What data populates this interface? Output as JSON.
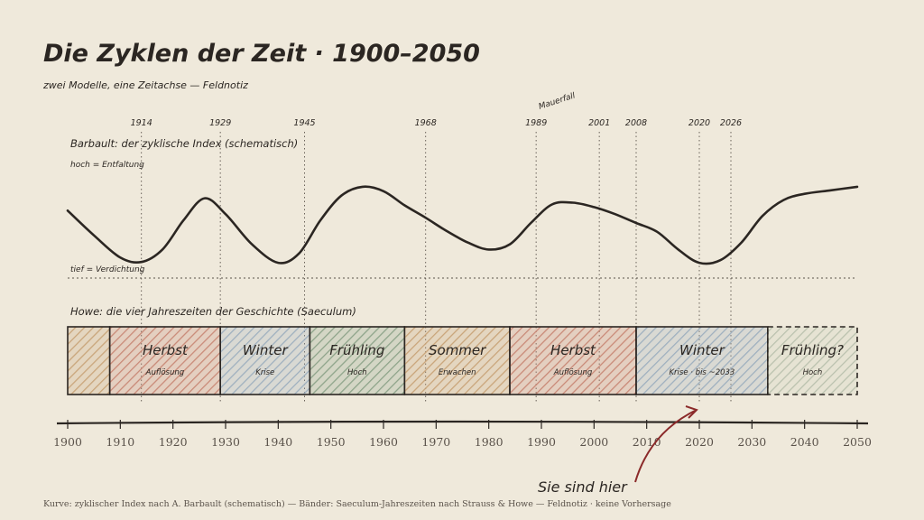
{
  "title": "Die Zyklen der Zeit · 1900–2050",
  "subtitle": "zwei Modelle, eine Zeitachse — Feldnotiz",
  "top_annotation": "Mauerfall",
  "event_years": [
    "1914",
    "1929",
    "1945",
    "1968",
    "1989",
    "2001",
    "2008",
    "2020",
    "2026"
  ],
  "curve": {
    "label": "Barbault: der zyklische Index (schematisch)",
    "high_label": "hoch = Entfaltung",
    "low_label": "tief = Verdichtung"
  },
  "bands": {
    "label": "Howe: die vier Jahreszeiten der Geschichte (Saeculum)",
    "items": [
      {
        "season": "",
        "sub": "",
        "start": 1900,
        "end": 1908,
        "color": "#c9a57a"
      },
      {
        "season": "Herbst",
        "sub": "Auflösung",
        "start": 1908,
        "end": 1929,
        "color": "#c98a78"
      },
      {
        "season": "Winter",
        "sub": "Krise",
        "start": 1929,
        "end": 1946,
        "color": "#9fb0bf"
      },
      {
        "season": "Frühling",
        "sub": "Hoch",
        "start": 1946,
        "end": 1964,
        "color": "#8ea48a"
      },
      {
        "season": "Sommer",
        "sub": "Erwachen",
        "start": 1964,
        "end": 1984,
        "color": "#c9a57a"
      },
      {
        "season": "Herbst",
        "sub": "Auflösung",
        "start": 1984,
        "end": 2008,
        "color": "#c98a78"
      },
      {
        "season": "Winter",
        "sub": "Krise · bis ~2033",
        "start": 2008,
        "end": 2033,
        "color": "#9fb0bf"
      },
      {
        "season": "Frühling?",
        "sub": "Hoch",
        "start": 2033,
        "end": 2050,
        "color": "#a8b49e",
        "dashed": true
      }
    ]
  },
  "chart_data": {
    "type": "line",
    "title": "Die Zyklen der Zeit · 1900–2050",
    "x": [
      1900,
      1905,
      1910,
      1914,
      1918,
      1922,
      1926,
      1930,
      1935,
      1940,
      1944,
      1948,
      1952,
      1956,
      1960,
      1964,
      1968,
      1972,
      1976,
      1980,
      1984,
      1988,
      1992,
      1996,
      2000,
      2004,
      2008,
      2012,
      2016,
      2020,
      2024,
      2028,
      2032,
      2036,
      2040,
      2045,
      2050
    ],
    "y": [
      0.66,
      0.38,
      0.13,
      0.08,
      0.22,
      0.55,
      0.8,
      0.62,
      0.28,
      0.07,
      0.18,
      0.55,
      0.83,
      0.93,
      0.88,
      0.72,
      0.58,
      0.43,
      0.3,
      0.22,
      0.28,
      0.52,
      0.73,
      0.75,
      0.7,
      0.62,
      0.52,
      0.42,
      0.22,
      0.07,
      0.1,
      0.3,
      0.6,
      0.78,
      0.85,
      0.89,
      0.93
    ],
    "xlim": [
      1900,
      2050
    ],
    "xticks": [
      1900,
      1910,
      1920,
      1930,
      1940,
      1950,
      1960,
      1970,
      1980,
      1990,
      2000,
      2010,
      2020,
      2030,
      2040,
      2050
    ],
    "ylim": [
      0,
      1
    ]
  },
  "marker": {
    "label": "Sie sind hier",
    "year": 2026
  },
  "footer": "Kurve: zyklischer Index nach A. Barbault (schematisch) — Bänder: Saeculum-Jahreszeiten nach Strauss & Howe — Feldnotiz · keine Vorhersage"
}
